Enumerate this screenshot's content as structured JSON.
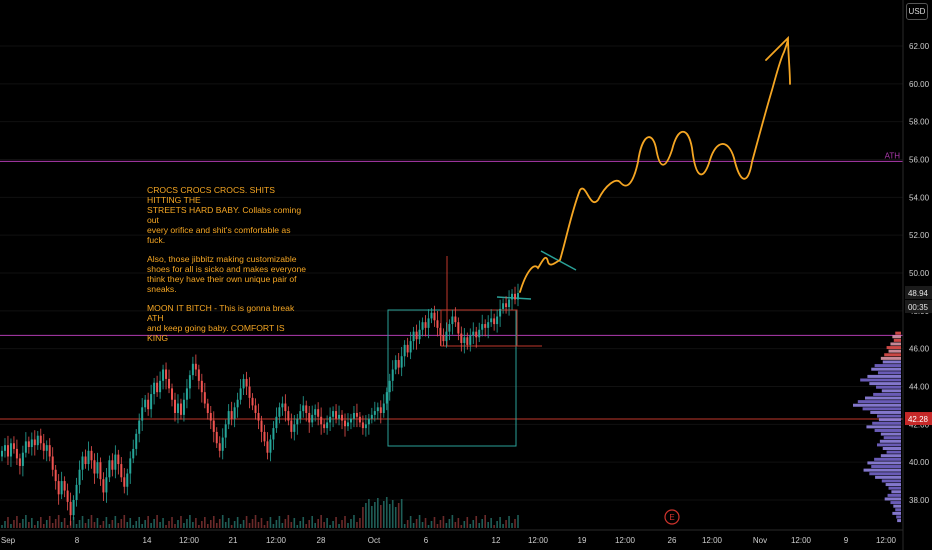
{
  "currency_label": "USD",
  "chart_data": {
    "type": "candlestick",
    "y_range": [
      36.2,
      64.0
    ],
    "y_ticks": [
      "62.00",
      "60.00",
      "58.00",
      "56.00",
      "54.00",
      "52.00",
      "50.00",
      "48.00",
      "46.00",
      "44.00",
      "42.00",
      "40.00",
      "38.00"
    ],
    "x_ticks": [
      "Sep",
      "8",
      "14",
      "12:00",
      "21",
      "12:00",
      "28",
      "Oct",
      "6",
      "12",
      "12:00",
      "19",
      "12:00",
      "26",
      "12:00",
      "Nov",
      "12:00",
      "9",
      "12:00"
    ],
    "price_labels": {
      "last_price": "48.94",
      "countdown": "00:35",
      "marked_price": "42.28"
    },
    "horizontal_lines": [
      {
        "label": "ATH",
        "price": 55.9,
        "color": "#b03bb0"
      },
      {
        "label": "",
        "price": 46.7,
        "color": "#b03bb0"
      },
      {
        "label": "",
        "price": 42.28,
        "color": "#c0392b"
      }
    ],
    "annotation_text": [
      "CROCS CROCS CROCS. SHITS HITTING THE\nSTREETS HARD BABY. Collabs coming out\nevery orifice and shit's comfortable as\nfuck.",
      "Also, those jibbitz making customizable\nshoes for all is sicko and makes everyone\nthink they have their own unique pair of\nsneaks.",
      "MOON IT BITCH - This is gonna break ATH\nand keep going baby. COMFORT IS KING"
    ],
    "event_marker": "E",
    "closes": [
      40.6,
      40.9,
      40.3,
      41.0,
      40.7,
      40.2,
      39.8,
      40.5,
      41.1,
      40.8,
      41.2,
      40.9,
      41.4,
      41.0,
      40.6,
      40.9,
      40.3,
      39.6,
      39.0,
      38.3,
      39.0,
      38.5,
      37.9,
      37.2,
      38.0,
      38.8,
      39.6,
      40.3,
      39.9,
      40.6,
      40.1,
      39.4,
      40.0,
      39.1,
      38.4,
      39.2,
      40.1,
      39.6,
      40.4,
      39.9,
      39.2,
      38.7,
      39.4,
      40.2,
      40.7,
      41.5,
      42.2,
      42.9,
      43.3,
      42.8,
      43.6,
      44.2,
      43.7,
      44.3,
      44.9,
      44.4,
      43.9,
      43.3,
      42.6,
      43.1,
      42.5,
      43.3,
      43.9,
      44.6,
      45.2,
      44.9,
      44.3,
      43.7,
      43.1,
      42.6,
      42.2,
      41.6,
      41.0,
      40.6,
      41.3,
      42.0,
      42.7,
      42.3,
      42.9,
      43.3,
      43.9,
      44.4,
      44.0,
      43.4,
      43.0,
      42.6,
      42.2,
      41.6,
      41.1,
      40.5,
      41.2,
      41.8,
      42.4,
      42.9,
      43.1,
      42.7,
      42.2,
      41.6,
      42.0,
      42.3,
      42.7,
      43.0,
      42.6,
      42.1,
      42.5,
      42.8,
      42.4,
      42.0,
      41.8,
      42.1,
      42.4,
      42.7,
      42.3,
      42.5,
      42.2,
      41.9,
      42.1,
      42.3,
      42.6,
      42.4,
      42.1,
      41.8,
      42.0,
      42.3,
      42.5,
      42.7,
      42.9,
      42.6,
      43.1,
      43.7,
      44.3,
      44.9,
      45.4,
      45.0,
      45.6,
      46.2,
      45.8,
      46.4,
      46.9,
      46.5,
      47.0,
      47.4,
      47.1,
      47.6,
      47.9,
      47.5,
      47.1,
      46.7,
      46.4,
      46.9,
      47.3,
      47.7,
      47.4,
      46.8,
      46.3,
      46.6,
      46.2,
      46.7,
      46.9,
      46.6,
      47.0,
      47.3,
      47.1,
      47.4,
      47.6,
      47.3,
      47.7,
      48.1,
      48.4,
      48.2,
      48.6,
      48.9,
      48.6,
      48.94
    ],
    "volume_profile": [
      0.12,
      0.18,
      0.15,
      0.22,
      0.3,
      0.26,
      0.35,
      0.42,
      0.38,
      0.55,
      0.62,
      0.48,
      0.7,
      0.85,
      0.66,
      0.52,
      0.4,
      0.58,
      0.75,
      0.9,
      1.0,
      0.8,
      0.64,
      0.5,
      0.46,
      0.6,
      0.72,
      0.55,
      0.42,
      0.36,
      0.44,
      0.5,
      0.38,
      0.3,
      0.42,
      0.56,
      0.7,
      0.62,
      0.78,
      0.66,
      0.54,
      0.4,
      0.32,
      0.26,
      0.2,
      0.28,
      0.34,
      0.22,
      0.16,
      0.12,
      0.18,
      0.1,
      0.08
    ]
  }
}
